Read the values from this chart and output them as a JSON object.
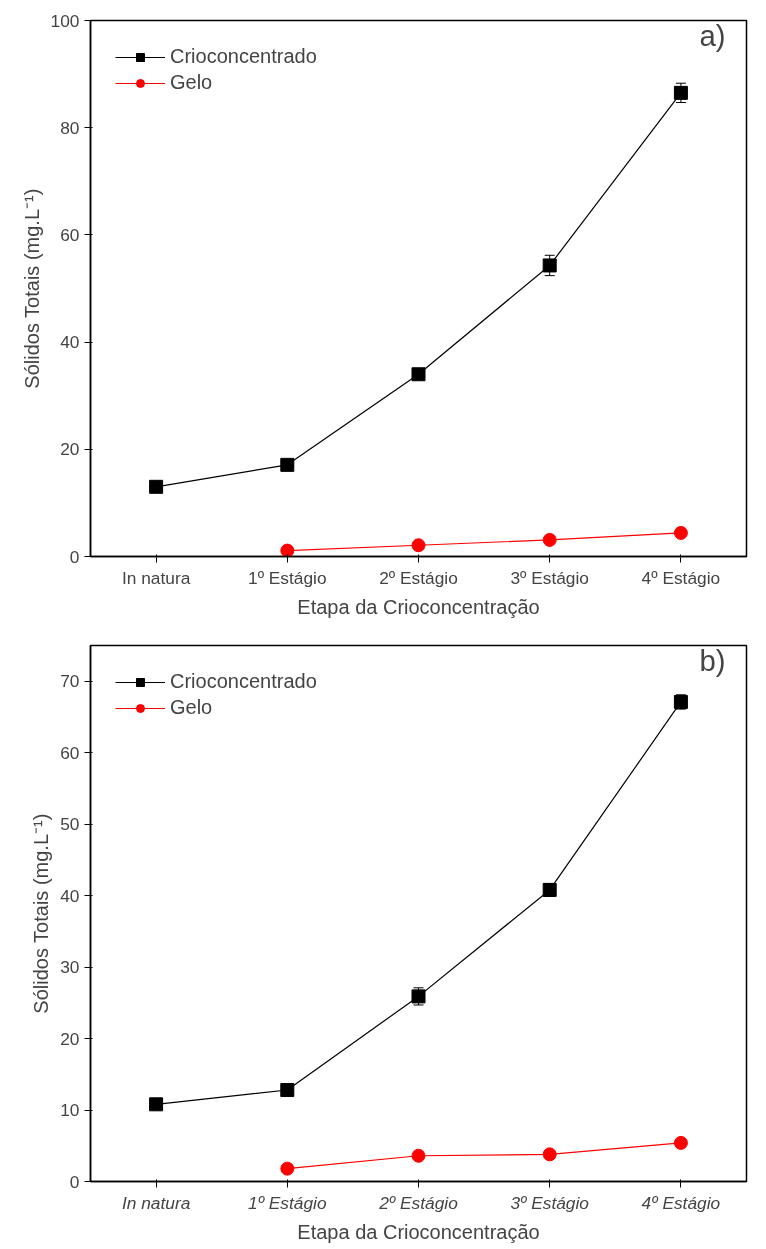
{
  "chart_data": [
    {
      "type": "line",
      "xlabel": "Etapa da Crioconcentração",
      "ylabel": "Sólidos Totais (mg.L⁻¹)",
      "annotations": [
        "a)"
      ],
      "categories": [
        "In natura",
        "1º Estágio",
        "2º Estágio",
        "3º Estágio",
        "4º Estágio"
      ],
      "ylim": [
        0,
        100
      ],
      "yticks": [
        0,
        20,
        40,
        60,
        80,
        100
      ],
      "grid": false,
      "legend": "top left",
      "series": [
        {
          "name": "Crioconcentrado",
          "color": "#000000",
          "marker": "square",
          "values": [
            13.0,
            17.1,
            34.0,
            54.3,
            86.5
          ],
          "errors": [
            null,
            null,
            null,
            1.9,
            1.8
          ]
        },
        {
          "name": "Gelo",
          "color": "#ff0000",
          "marker": "circle",
          "values": [
            null,
            1.1,
            2.1,
            3.1,
            4.4
          ]
        }
      ]
    },
    {
      "type": "line",
      "xlabel": "Etapa da Crioconcentração",
      "ylabel": "Sólidos Totais (mg.L⁻¹)",
      "annotations": [
        "b)"
      ],
      "categories": [
        "In natura",
        "1º Estágio",
        "2º Estágio",
        "3º Estágio",
        "4º Estágio"
      ],
      "ylim": [
        0,
        75
      ],
      "yticks": [
        0,
        10,
        20,
        30,
        40,
        50,
        60,
        70
      ],
      "grid": false,
      "legend": "top left",
      "series": [
        {
          "name": "Crioconcentrado",
          "color": "#000000",
          "marker": "square",
          "values": [
            10.8,
            12.8,
            25.9,
            40.8,
            67.1
          ],
          "errors": [
            null,
            null,
            1.2,
            0.9,
            1.0
          ]
        },
        {
          "name": "Gelo",
          "color": "#ff0000",
          "marker": "circle",
          "values": [
            null,
            1.8,
            3.6,
            3.8,
            5.4
          ]
        }
      ]
    }
  ]
}
